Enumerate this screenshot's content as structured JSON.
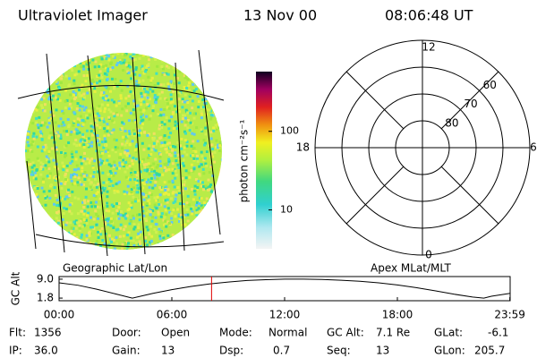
{
  "header": {
    "instrument": "Ultraviolet Imager",
    "date": "13 Nov 00",
    "time": "08:06:48 UT"
  },
  "image_panel": {
    "label": "Geographic Lat/Lon"
  },
  "colorbar": {
    "label": "photon cm⁻²s⁻¹",
    "log": true,
    "lim": [
      3.2,
      575
    ],
    "ticks": [
      100,
      10
    ]
  },
  "polar_panel": {
    "label": "Apex MLat/MLT",
    "rlim": [
      90,
      50
    ],
    "rings": [
      60,
      70,
      80
    ],
    "mlt": [
      12,
      18,
      6,
      0
    ]
  },
  "chart_data": {
    "type": "line",
    "ylabel": "GC Alt",
    "x": [
      0,
      1,
      2,
      3,
      3.9,
      5,
      6,
      7,
      8,
      9,
      10,
      11,
      12,
      13,
      14,
      15,
      16,
      17,
      18,
      19,
      20,
      21,
      22,
      22.6,
      23,
      24
    ],
    "values": [
      7.6,
      6.7,
      5.2,
      3.4,
      1.8,
      3.6,
      5.0,
      6.2,
      7.2,
      7.9,
      8.5,
      8.8,
      9.0,
      9.0,
      8.9,
      8.6,
      8.2,
      7.6,
      6.8,
      5.8,
      4.6,
      3.3,
      2.2,
      1.8,
      2.5,
      3.6
    ],
    "color": "#000000",
    "marker_x": 8.113,
    "marker_color": "#e00000",
    "xlim": [
      0,
      24
    ],
    "ylim": [
      0.8,
      10
    ],
    "xticks": [
      {
        "value": 0,
        "label": "00:00"
      },
      {
        "value": 6,
        "label": "06:00"
      },
      {
        "value": 12,
        "label": "12:00"
      },
      {
        "value": 18,
        "label": "18:00"
      },
      {
        "value": 23.983,
        "label": "23:59"
      }
    ],
    "yticks": [
      {
        "value": 9,
        "label": "9.0"
      },
      1.8
    ]
  },
  "footer": {
    "rows": [
      [
        {
          "label": "Flt:",
          "value": "1356"
        },
        {
          "label": "Door:",
          "value": "Open"
        },
        {
          "label": "Mode:",
          "value": "Normal"
        },
        {
          "label": "GC Alt:",
          "value": "7.1 Re"
        },
        {
          "label": "GLat:",
          "value": "-6.1"
        }
      ],
      [
        {
          "label": "IP:",
          "value": "36.0"
        },
        {
          "label": "Gain:",
          "value": "13"
        },
        {
          "label": "Dsp:",
          "value": "0.7"
        },
        {
          "label": "Seq:",
          "value": "13"
        },
        {
          "label": "GLon:",
          "value": "205.7"
        }
      ]
    ]
  }
}
